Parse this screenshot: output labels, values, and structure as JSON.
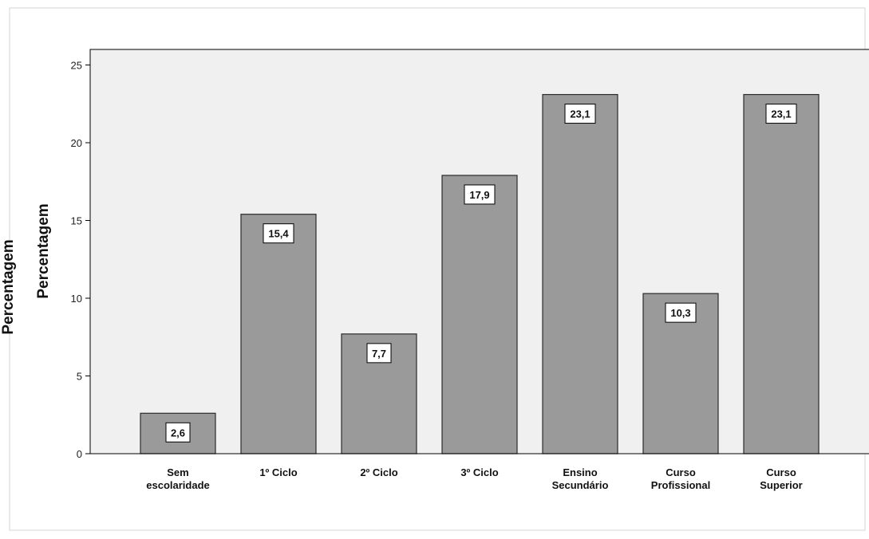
{
  "chart_data": {
    "type": "bar",
    "title": "",
    "xlabel": "",
    "ylabel": "Percentagem",
    "ylim": [
      0,
      26
    ],
    "yticks": [
      0,
      5,
      10,
      15,
      20,
      25
    ],
    "grid": false,
    "legend": "none",
    "categories": [
      [
        "Sem",
        "escolaridade"
      ],
      [
        "1º Ciclo"
      ],
      [
        "2º Ciclo"
      ],
      [
        "3º Ciclo"
      ],
      [
        "Ensino",
        "Secundário"
      ],
      [
        "Curso",
        "Profissional"
      ],
      [
        "Curso",
        "Superior"
      ]
    ],
    "values": [
      2.6,
      15.4,
      7.7,
      17.9,
      23.1,
      10.3,
      23.1
    ],
    "value_labels": [
      "2,6",
      "15,4",
      "7,7",
      "17,9",
      "23,1",
      "10,3",
      "23,1"
    ],
    "colors": {
      "bar": "#9a9a9a",
      "bar_stroke": "#2b2b2b",
      "plot_bg": "#f0f0f0",
      "axis": "#000000",
      "frame": "#d0d0d0"
    }
  }
}
